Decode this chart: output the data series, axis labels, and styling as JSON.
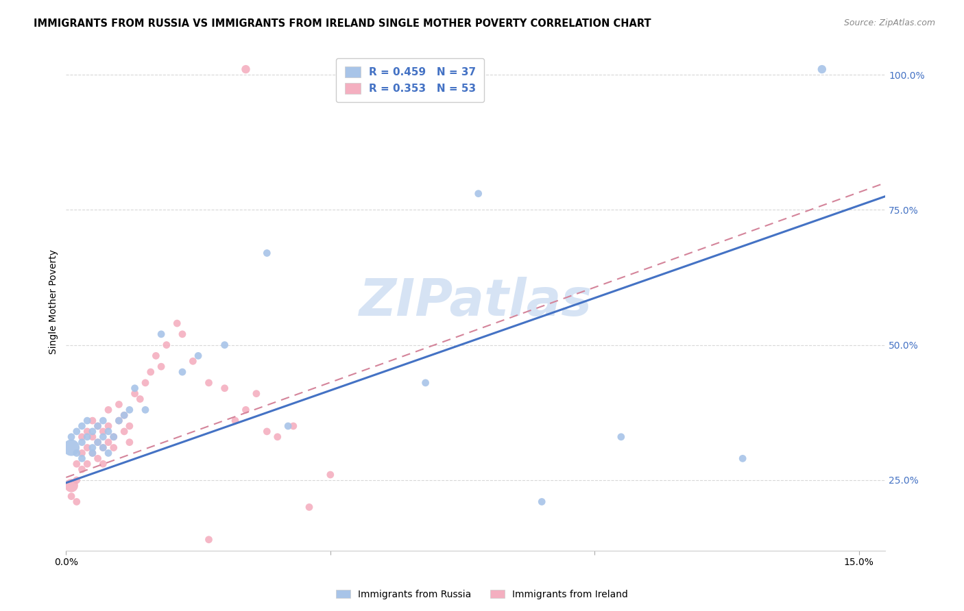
{
  "title": "IMMIGRANTS FROM RUSSIA VS IMMIGRANTS FROM IRELAND SINGLE MOTHER POVERTY CORRELATION CHART",
  "source": "Source: ZipAtlas.com",
  "ylabel": "Single Mother Poverty",
  "legend_label1": "Immigrants from Russia",
  "legend_label2": "Immigrants from Ireland",
  "R1": "0.459",
  "N1": "37",
  "R2": "0.353",
  "N2": "53",
  "color_russia": "#a8c4e8",
  "color_ireland": "#f4afc0",
  "color_line_russia": "#4472c4",
  "color_line_ireland": "#d4849a",
  "watermark_color": "#c5d8f0",
  "ylim": [
    0.12,
    1.04
  ],
  "xlim": [
    0.0,
    0.155
  ],
  "ytick_vals": [
    0.25,
    0.5,
    0.75,
    1.0
  ],
  "ytick_labels": [
    "25.0%",
    "50.0%",
    "75.0%",
    "100.0%"
  ],
  "line_russia_x0": 0.0,
  "line_russia_y0": 0.245,
  "line_russia_x1": 0.155,
  "line_russia_y1": 0.775,
  "line_ireland_x0": 0.0,
  "line_ireland_y0": 0.255,
  "line_ireland_x1": 0.155,
  "line_ireland_y1": 0.8,
  "russia_x": [
    0.001,
    0.001,
    0.002,
    0.002,
    0.003,
    0.003,
    0.003,
    0.004,
    0.004,
    0.005,
    0.005,
    0.005,
    0.006,
    0.006,
    0.007,
    0.007,
    0.007,
    0.008,
    0.008,
    0.009,
    0.01,
    0.011,
    0.012,
    0.013,
    0.015,
    0.018,
    0.022,
    0.025,
    0.03,
    0.038,
    0.042,
    0.068,
    0.078,
    0.09,
    0.105,
    0.128,
    0.143
  ],
  "russia_y": [
    0.31,
    0.33,
    0.3,
    0.34,
    0.29,
    0.32,
    0.35,
    0.33,
    0.36,
    0.3,
    0.31,
    0.34,
    0.32,
    0.35,
    0.31,
    0.33,
    0.36,
    0.3,
    0.34,
    0.33,
    0.36,
    0.37,
    0.38,
    0.42,
    0.38,
    0.52,
    0.45,
    0.48,
    0.5,
    0.67,
    0.35,
    0.43,
    0.78,
    0.21,
    0.33,
    0.29,
    1.01
  ],
  "russia_sizes": [
    300,
    60,
    60,
    60,
    60,
    60,
    60,
    60,
    60,
    60,
    60,
    60,
    60,
    60,
    60,
    60,
    60,
    60,
    60,
    60,
    60,
    60,
    60,
    60,
    60,
    60,
    60,
    60,
    60,
    60,
    60,
    60,
    60,
    60,
    60,
    60,
    80
  ],
  "ireland_x": [
    0.001,
    0.001,
    0.002,
    0.002,
    0.002,
    0.003,
    0.003,
    0.003,
    0.004,
    0.004,
    0.004,
    0.005,
    0.005,
    0.005,
    0.006,
    0.006,
    0.006,
    0.007,
    0.007,
    0.007,
    0.008,
    0.008,
    0.008,
    0.009,
    0.009,
    0.01,
    0.01,
    0.011,
    0.011,
    0.012,
    0.012,
    0.013,
    0.014,
    0.015,
    0.016,
    0.017,
    0.018,
    0.019,
    0.021,
    0.022,
    0.024,
    0.027,
    0.03,
    0.032,
    0.034,
    0.036,
    0.038,
    0.04,
    0.043,
    0.046,
    0.05,
    0.034,
    0.027
  ],
  "ireland_y": [
    0.24,
    0.22,
    0.28,
    0.25,
    0.21,
    0.3,
    0.33,
    0.27,
    0.31,
    0.34,
    0.28,
    0.3,
    0.33,
    0.36,
    0.29,
    0.32,
    0.35,
    0.28,
    0.31,
    0.34,
    0.32,
    0.35,
    0.38,
    0.31,
    0.33,
    0.36,
    0.39,
    0.34,
    0.37,
    0.32,
    0.35,
    0.41,
    0.4,
    0.43,
    0.45,
    0.48,
    0.46,
    0.5,
    0.54,
    0.52,
    0.47,
    0.43,
    0.42,
    0.36,
    0.38,
    0.41,
    0.34,
    0.33,
    0.35,
    0.2,
    0.26,
    1.01,
    0.14
  ],
  "ireland_sizes": [
    200,
    60,
    60,
    60,
    60,
    60,
    60,
    60,
    60,
    60,
    60,
    60,
    60,
    60,
    60,
    60,
    60,
    60,
    60,
    60,
    60,
    60,
    60,
    60,
    60,
    60,
    60,
    60,
    60,
    60,
    60,
    60,
    60,
    60,
    60,
    60,
    60,
    60,
    60,
    60,
    60,
    60,
    60,
    60,
    60,
    60,
    60,
    60,
    60,
    60,
    60,
    80,
    60
  ]
}
